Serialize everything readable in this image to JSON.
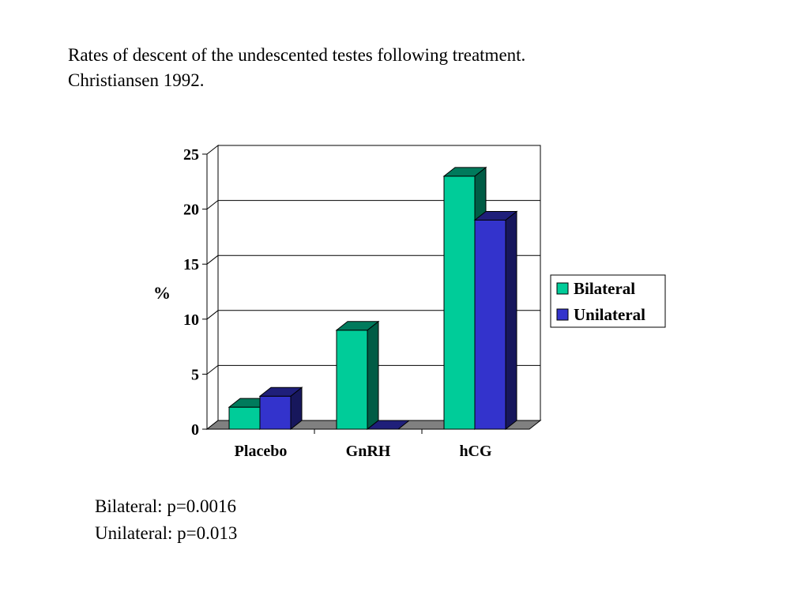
{
  "slide": {
    "title_line1": "Rates of descent of the undescented testes following treatment.",
    "title_line2": "Christiansen 1992.",
    "stat_line1": "Bilateral: p=0.0016",
    "stat_line2": "Unilateral: p=0.013"
  },
  "chart_data": {
    "type": "bar",
    "style": "3d-clustered",
    "categories": [
      "Placebo",
      "GnRH",
      "hCG"
    ],
    "series": [
      {
        "name": "Bilateral",
        "values": [
          2,
          9,
          23
        ],
        "color": "#00CC99"
      },
      {
        "name": "Unilateral",
        "values": [
          3,
          0,
          19
        ],
        "color": "#3333CC"
      }
    ],
    "ylabel": "%",
    "xlabel": "",
    "ylim": [
      0,
      25
    ],
    "yticks": [
      0,
      5,
      10,
      15,
      20,
      25
    ],
    "grid": true,
    "legend": "right"
  }
}
